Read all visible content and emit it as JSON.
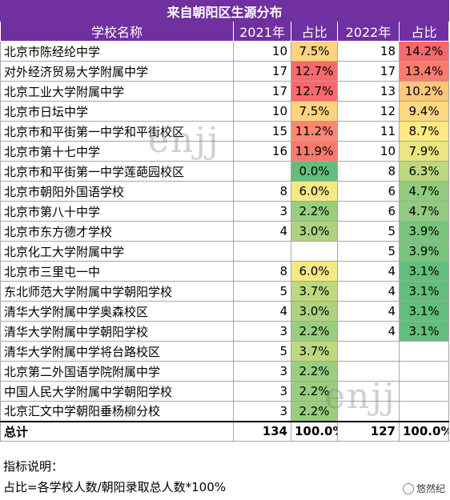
{
  "title": "来自朝阳区生源分布",
  "headers": [
    "学校名称",
    "2021年",
    "占比",
    "2022年",
    "占比"
  ],
  "colors": {
    "header_bg": "#7030a0",
    "pct_scale": [
      "#63be7b",
      "#ffeb84",
      "#f8696b"
    ]
  },
  "rows": [
    {
      "school": "北京市陈经纶中学",
      "y2021": "10",
      "p2021": "7.5%",
      "y2022": "18",
      "p2022": "14.2%",
      "v2021": 7.5,
      "v2022": 14.2
    },
    {
      "school": "对外经济贸易大学附属中学",
      "y2021": "17",
      "p2021": "12.7%",
      "y2022": "17",
      "p2022": "13.4%",
      "v2021": 12.7,
      "v2022": 13.4
    },
    {
      "school": "北京工业大学附属中学",
      "y2021": "17",
      "p2021": "12.7%",
      "y2022": "13",
      "p2022": "10.2%",
      "v2021": 12.7,
      "v2022": 10.2
    },
    {
      "school": "北京市日坛中学",
      "y2021": "10",
      "p2021": "7.5%",
      "y2022": "12",
      "p2022": "9.4%",
      "v2021": 7.5,
      "v2022": 9.4
    },
    {
      "school": "北京市和平街第一中学和平街校区",
      "y2021": "15",
      "p2021": "11.2%",
      "y2022": "11",
      "p2022": "8.7%",
      "v2021": 11.2,
      "v2022": 8.7
    },
    {
      "school": "北京市第十七中学",
      "y2021": "16",
      "p2021": "11.9%",
      "y2022": "10",
      "p2022": "7.9%",
      "v2021": 11.9,
      "v2022": 7.9
    },
    {
      "school": "北京市和平街第一中学莲葩园校区",
      "y2021": "",
      "p2021": "0.0%",
      "y2022": "8",
      "p2022": "6.3%",
      "v2021": 0.0,
      "v2022": 6.3
    },
    {
      "school": "北京市朝阳外国语学校",
      "y2021": "8",
      "p2021": "6.0%",
      "y2022": "6",
      "p2022": "4.7%",
      "v2021": 6.0,
      "v2022": 4.7
    },
    {
      "school": "北京市第八十中学",
      "y2021": "3",
      "p2021": "2.2%",
      "y2022": "6",
      "p2022": "4.7%",
      "v2021": 2.2,
      "v2022": 4.7
    },
    {
      "school": "北京市东方德才学校",
      "y2021": "4",
      "p2021": "3.0%",
      "y2022": "5",
      "p2022": "3.9%",
      "v2021": 3.0,
      "v2022": 3.9
    },
    {
      "school": "北京化工大学附属中学",
      "y2021": "",
      "p2021": "",
      "y2022": "5",
      "p2022": "3.9%",
      "v2021": null,
      "v2022": 3.9
    },
    {
      "school": "北京市三里屯一中",
      "y2021": "8",
      "p2021": "6.0%",
      "y2022": "4",
      "p2022": "3.1%",
      "v2021": 6.0,
      "v2022": 3.1
    },
    {
      "school": "东北师范大学附属中学朝阳学校",
      "y2021": "5",
      "p2021": "3.7%",
      "y2022": "4",
      "p2022": "3.1%",
      "v2021": 3.7,
      "v2022": 3.1
    },
    {
      "school": "清华大学附属中学奥森校区",
      "y2021": "4",
      "p2021": "3.0%",
      "y2022": "4",
      "p2022": "3.1%",
      "v2021": 3.0,
      "v2022": 3.1
    },
    {
      "school": "清华大学附属中学朝阳学校",
      "y2021": "3",
      "p2021": "2.2%",
      "y2022": "4",
      "p2022": "3.1%",
      "v2021": 2.2,
      "v2022": 3.1
    },
    {
      "school": "清华大学附属中学将台路校区",
      "y2021": "5",
      "p2021": "3.7%",
      "y2022": "",
      "p2022": "",
      "v2021": 3.7,
      "v2022": null
    },
    {
      "school": "北京第二外国语学院附属中学",
      "y2021": "3",
      "p2021": "2.2%",
      "y2022": "",
      "p2022": "",
      "v2021": 2.2,
      "v2022": null
    },
    {
      "school": "中国人民大学附属中学朝阳学校",
      "y2021": "3",
      "p2021": "2.2%",
      "y2022": "",
      "p2022": "",
      "v2021": 2.2,
      "v2022": null
    },
    {
      "school": "北京汇文中学朝阳垂杨柳分校",
      "y2021": "3",
      "p2021": "2.2%",
      "y2022": "",
      "p2022": "",
      "v2021": 2.2,
      "v2022": null
    }
  ],
  "total": {
    "label": "总计",
    "y2021": "134",
    "p2021": "100.0%",
    "y2022": "127",
    "p2022": "100.0%"
  },
  "notes": [
    "指标说明：",
    "占比=各学校人数/朝阳录取总人数*100%"
  ],
  "watermark": "enjj",
  "brand": "悠然纪"
}
